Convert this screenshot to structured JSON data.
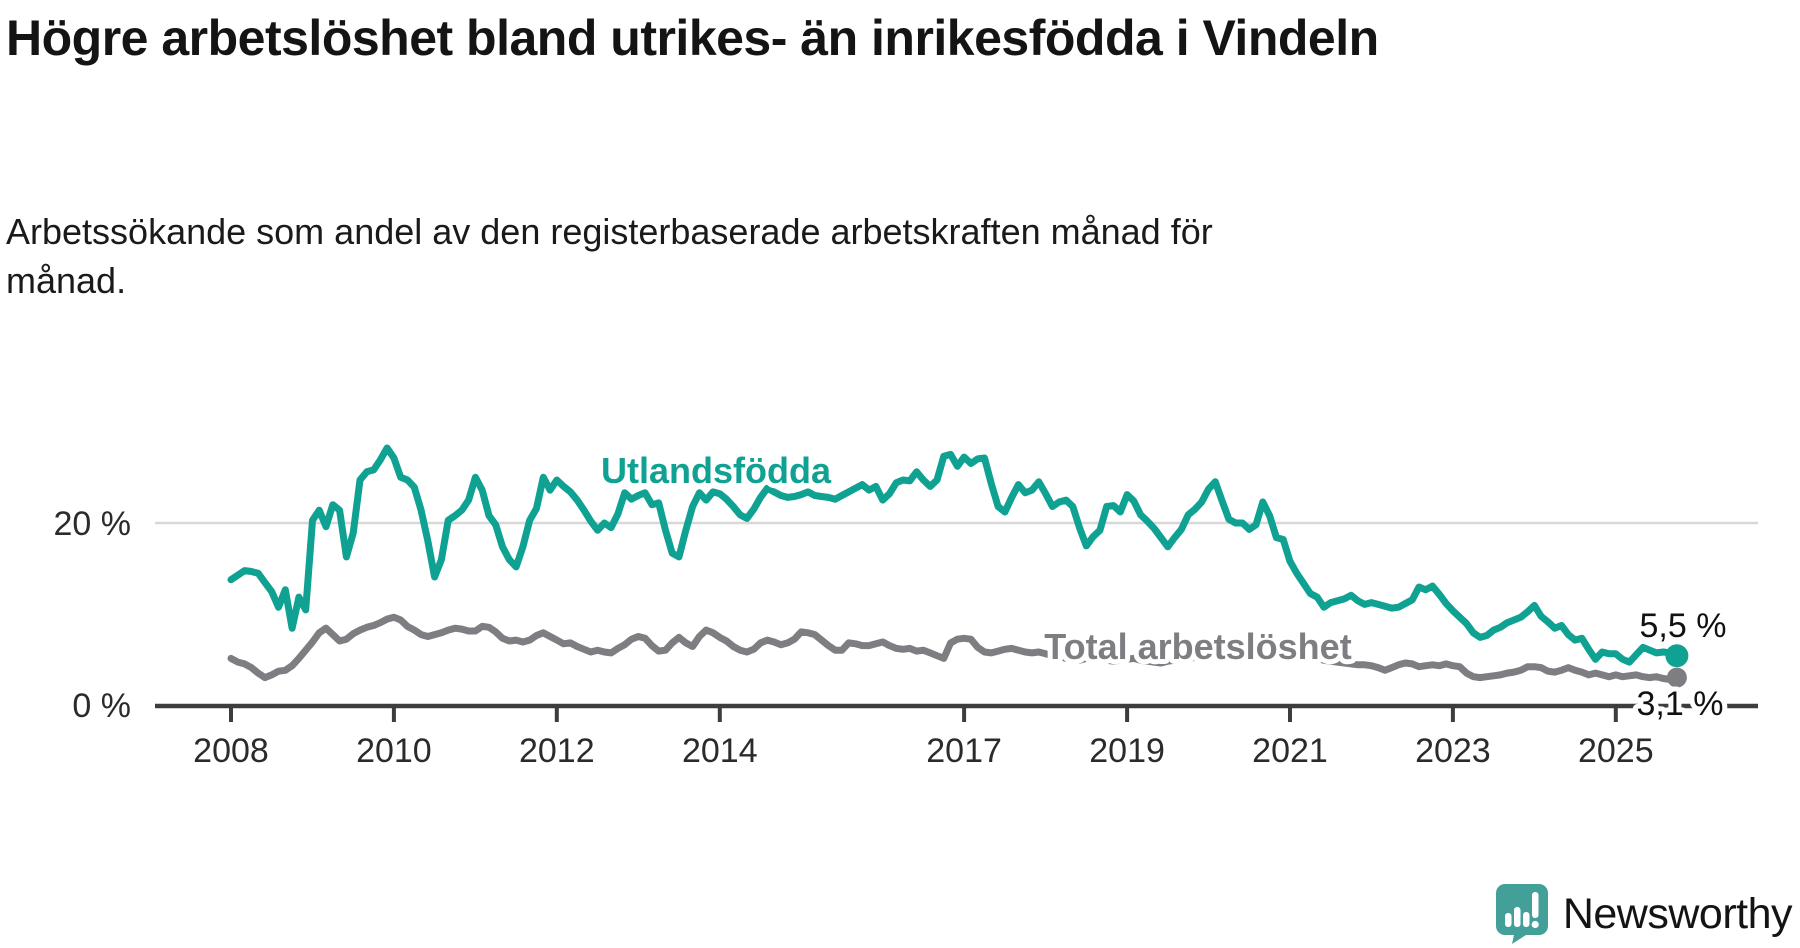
{
  "header": {
    "title": "Högre arbetslöshet bland utrikes- än inrikesfödda i Vindeln",
    "subtitle": "Arbetssökande som andel av den registerbaserade arbetskraften månad för månad."
  },
  "chart_data": {
    "type": "line",
    "x_unit": "month",
    "x_start": "2008-01",
    "x_end": "2025-10",
    "x_ticks": [
      2008,
      2010,
      2012,
      2014,
      2017,
      2019,
      2021,
      2023,
      2025
    ],
    "ylim": [
      0,
      30
    ],
    "grid_values": [
      20
    ],
    "y_ticks": [
      {
        "value": 20,
        "label": "20 %"
      },
      {
        "value": 0,
        "label": "0 %"
      }
    ],
    "legend_position": "inline-labels",
    "series": [
      {
        "name": "Utlandsfödda",
        "color": "#0fa192",
        "end_label": "5,5 %",
        "last_value": 5.5,
        "values": [
          13.8,
          14.3,
          14.8,
          14.7,
          14.5,
          13.5,
          12.5,
          10.8,
          12.7,
          8.5,
          11.9,
          10.5,
          20.3,
          21.4,
          19.6,
          22.0,
          21.4,
          16.3,
          18.9,
          24.7,
          25.6,
          25.8,
          26.9,
          28.2,
          27.1,
          25.0,
          24.7,
          23.9,
          21.4,
          18.0,
          14.1,
          16.0,
          20.3,
          20.8,
          21.4,
          22.5,
          25.0,
          23.6,
          20.8,
          19.8,
          17.4,
          16.0,
          15.2,
          17.4,
          20.3,
          21.6,
          25.0,
          23.6,
          24.7,
          24.0,
          23.4,
          22.5,
          21.4,
          20.2,
          19.2,
          20.0,
          19.5,
          21.0,
          23.3,
          22.6,
          23.0,
          23.3,
          22.0,
          22.2,
          19.2,
          16.7,
          16.3,
          19.2,
          21.8,
          23.3,
          22.5,
          23.4,
          23.2,
          22.6,
          21.8,
          20.9,
          20.5,
          21.5,
          22.8,
          23.8,
          23.4,
          23.0,
          22.8,
          22.9,
          23.1,
          23.4,
          23.0,
          22.9,
          22.8,
          22.6,
          23.0,
          23.4,
          23.8,
          24.2,
          23.6,
          24.0,
          22.5,
          23.2,
          24.4,
          24.7,
          24.6,
          25.6,
          24.7,
          24.0,
          24.7,
          27.3,
          27.5,
          26.2,
          27.2,
          26.5,
          27.0,
          27.1,
          24.3,
          21.8,
          21.2,
          22.8,
          24.2,
          23.3,
          23.6,
          24.5,
          23.2,
          21.8,
          22.3,
          22.5,
          21.8,
          19.5,
          17.5,
          18.5,
          19.2,
          21.8,
          21.9,
          21.2,
          23.1,
          22.4,
          20.9,
          20.2,
          19.4,
          18.4,
          17.4,
          18.4,
          19.3,
          20.9,
          21.5,
          22.3,
          23.7,
          24.5,
          22.4,
          20.4,
          20.0,
          20.0,
          19.3,
          19.8,
          22.3,
          20.8,
          18.4,
          18.2,
          15.8,
          14.5,
          13.4,
          12.3,
          11.9,
          10.8,
          11.3,
          11.5,
          11.7,
          12.1,
          11.5,
          11.1,
          11.3,
          11.1,
          10.9,
          10.7,
          10.8,
          11.2,
          11.6,
          13.0,
          12.7,
          13.1,
          12.2,
          11.2,
          10.4,
          9.7,
          9.0,
          8.0,
          7.5,
          7.7,
          8.3,
          8.6,
          9.1,
          9.4,
          9.7,
          10.3,
          11.0,
          9.8,
          9.2,
          8.5,
          8.8,
          7.8,
          7.2,
          7.4,
          6.2,
          5.1,
          5.9,
          5.7,
          5.7,
          5.1,
          4.8,
          5.6,
          6.4,
          6.1,
          5.8,
          5.9,
          5.8,
          5.5
        ]
      },
      {
        "name": "Total arbetslöshet",
        "color": "#7d7d82",
        "end_label": "3,1 %",
        "last_value": 3.1,
        "values": [
          5.2,
          4.8,
          4.6,
          4.2,
          3.6,
          3.1,
          3.4,
          3.8,
          3.9,
          4.4,
          5.2,
          6.1,
          7.0,
          8.0,
          8.5,
          7.8,
          7.1,
          7.3,
          7.9,
          8.3,
          8.6,
          8.8,
          9.1,
          9.5,
          9.7,
          9.4,
          8.7,
          8.3,
          7.8,
          7.6,
          7.8,
          8.0,
          8.3,
          8.5,
          8.4,
          8.2,
          8.2,
          8.7,
          8.6,
          8.1,
          7.4,
          7.1,
          7.2,
          7.0,
          7.2,
          7.7,
          8.0,
          7.6,
          7.2,
          6.8,
          6.9,
          6.5,
          6.2,
          5.9,
          6.1,
          5.9,
          5.8,
          6.3,
          6.7,
          7.3,
          7.6,
          7.4,
          6.6,
          6.0,
          6.1,
          6.9,
          7.5,
          6.9,
          6.5,
          7.6,
          8.3,
          8.0,
          7.5,
          7.1,
          6.5,
          6.1,
          5.9,
          6.2,
          6.9,
          7.2,
          7.0,
          6.7,
          6.9,
          7.3,
          8.1,
          8.0,
          7.8,
          7.2,
          6.6,
          6.1,
          6.1,
          6.9,
          6.8,
          6.6,
          6.6,
          6.8,
          7.0,
          6.6,
          6.3,
          6.2,
          6.3,
          6.0,
          6.1,
          5.8,
          5.5,
          5.2,
          6.9,
          7.3,
          7.4,
          7.3,
          6.4,
          5.9,
          5.8,
          6.0,
          6.2,
          6.3,
          6.1,
          5.9,
          5.8,
          5.9,
          5.7,
          5.5,
          5.4,
          5.2,
          5.1,
          5.0,
          5.2,
          5.3,
          5.1,
          5.0,
          4.9,
          5.0,
          5.1,
          5.2,
          5.0,
          4.9,
          4.8,
          4.7,
          4.9,
          5.0,
          5.1,
          5.2,
          5.3,
          5.5,
          5.7,
          5.9,
          6.2,
          6.6,
          6.8,
          6.9,
          6.7,
          6.5,
          6.3,
          6.1,
          5.9,
          5.8,
          5.7,
          5.6,
          5.4,
          5.3,
          5.2,
          5.0,
          4.9,
          4.8,
          4.7,
          4.6,
          4.5,
          4.5,
          4.4,
          4.2,
          3.9,
          4.2,
          4.5,
          4.7,
          4.6,
          4.3,
          4.4,
          4.5,
          4.4,
          4.6,
          4.4,
          4.3,
          3.6,
          3.2,
          3.1,
          3.2,
          3.3,
          3.4,
          3.6,
          3.7,
          3.9,
          4.3,
          4.3,
          4.2,
          3.8,
          3.7,
          3.9,
          4.2,
          3.9,
          3.7,
          3.4,
          3.6,
          3.4,
          3.2,
          3.4,
          3.2,
          3.3,
          3.4,
          3.2,
          3.1,
          3.2,
          3.0,
          2.9,
          3.1
        ]
      }
    ]
  },
  "branding": {
    "logo_text": "Newsworthy",
    "logo_text_color": "#35a096",
    "logo_icon_color": "#43a098"
  }
}
